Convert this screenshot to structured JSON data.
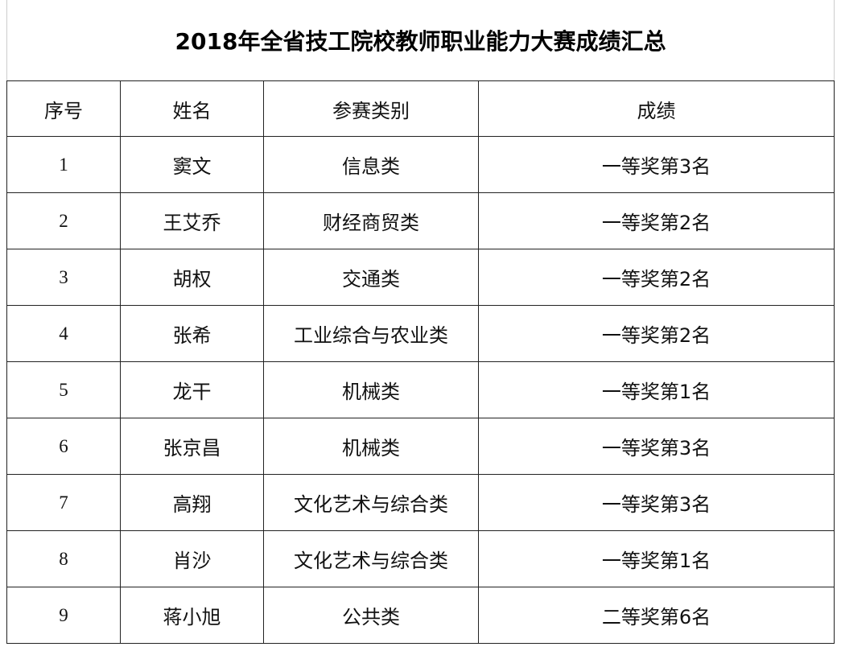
{
  "title": "2018年全省技工院校教师职业能力大赛成绩汇总",
  "table": {
    "header": [
      "序号",
      "姓名",
      "参赛类别",
      "成绩"
    ],
    "rows": [
      [
        1,
        "窦文",
        "信息类",
        "一等奖第3名"
      ],
      [
        2,
        "王艾乔",
        "财经商贸类",
        "一等奖第2名"
      ],
      [
        3,
        "胡权",
        "交通类",
        "一等奖第2名"
      ],
      [
        4,
        "张希",
        "工业综合与农业类",
        "一等奖第2名"
      ],
      [
        5,
        "龙干",
        "机械类",
        "一等奖第1名"
      ],
      [
        6,
        "张京昌",
        "机械类",
        "一等奖第3名"
      ],
      [
        7,
        "高翔",
        "文化艺术与综合类",
        "一等奖第3名"
      ],
      [
        8,
        "肖沙",
        "文化艺术与综合类",
        "一等奖第1名"
      ],
      [
        9,
        "蒋小旭",
        "公共类",
        "二等奖第6名"
      ]
    ]
  }
}
